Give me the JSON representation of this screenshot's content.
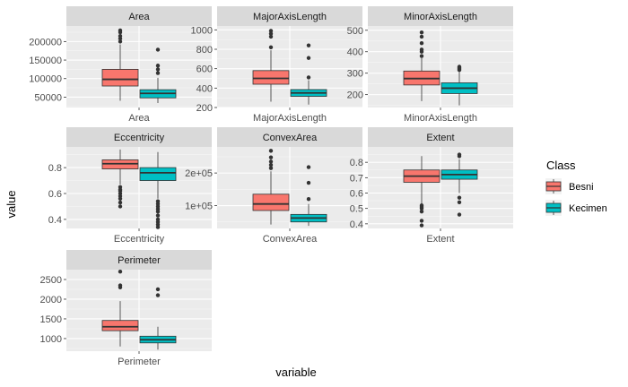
{
  "chart_data": {
    "type": "box",
    "xlabel": "variable",
    "ylabel": "value",
    "legend": {
      "title": "Class",
      "position": "right",
      "entries": [
        {
          "name": "Besni",
          "color": "#F8766D"
        },
        {
          "name": "Kecimen",
          "color": "#00BFC4"
        }
      ]
    },
    "panels": [
      {
        "name": "Area",
        "x_tick": "Area",
        "ylim": [
          22000,
          242000
        ],
        "yticks": [
          {
            "v": 50000,
            "label": "50000"
          },
          {
            "v": 100000,
            "label": "100000"
          },
          {
            "v": 150000,
            "label": "150000"
          },
          {
            "v": 200000,
            "label": "200000"
          }
        ],
        "boxes": [
          {
            "class": "Besni",
            "min": 40000,
            "q1": 80000,
            "median": 98000,
            "q3": 125000,
            "max": 192000,
            "outliers": [
              200000,
              208000,
              215000,
              225000,
              230000
            ]
          },
          {
            "class": "Kecimen",
            "min": 34000,
            "q1": 48000,
            "median": 60000,
            "q3": 70000,
            "max": 102000,
            "outliers": [
              115000,
              125000,
              135000,
              178000
            ]
          }
        ]
      },
      {
        "name": "MajorAxisLength",
        "x_tick": "MajorAxisLength",
        "ylim": [
          200,
          1040
        ],
        "yticks": [
          {
            "v": 200,
            "label": "200"
          },
          {
            "v": 400,
            "label": "400"
          },
          {
            "v": 600,
            "label": "600"
          },
          {
            "v": 800,
            "label": "800"
          },
          {
            "v": 1000,
            "label": "1000"
          }
        ],
        "boxes": [
          {
            "class": "Besni",
            "min": 260,
            "q1": 440,
            "median": 500,
            "q3": 580,
            "max": 790,
            "outliers": [
              820,
              930,
              960,
              990
            ]
          },
          {
            "class": "Kecimen",
            "min": 230,
            "q1": 315,
            "median": 350,
            "q3": 385,
            "max": 480,
            "outliers": [
              510,
              710,
              840
            ]
          }
        ]
      },
      {
        "name": "MinorAxisLength",
        "x_tick": "MinorAxisLength",
        "ylim": [
          140,
          520
        ],
        "yticks": [
          {
            "v": 200,
            "label": "200"
          },
          {
            "v": 300,
            "label": "300"
          },
          {
            "v": 400,
            "label": "400"
          },
          {
            "v": 500,
            "label": "500"
          }
        ],
        "boxes": [
          {
            "class": "Besni",
            "min": 170,
            "q1": 245,
            "median": 275,
            "q3": 310,
            "max": 370,
            "outliers": [
              380,
              400,
              410,
              440,
              470,
              490
            ]
          },
          {
            "class": "Kecimen",
            "min": 150,
            "q1": 205,
            "median": 230,
            "q3": 255,
            "max": 310,
            "outliers": [
              315,
              320,
              325,
              330
            ]
          }
        ]
      },
      {
        "name": "Eccentricity",
        "x_tick": "Eccentricity",
        "ylim": [
          0.33,
          0.96
        ],
        "yticks": [
          {
            "v": 0.4,
            "label": "0.4"
          },
          {
            "v": 0.6,
            "label": "0.6"
          },
          {
            "v": 0.8,
            "label": "0.8"
          }
        ],
        "boxes": [
          {
            "class": "Besni",
            "min": 0.67,
            "q1": 0.79,
            "median": 0.83,
            "q3": 0.86,
            "max": 0.94,
            "outliers": [
              0.5,
              0.53,
              0.56,
              0.58,
              0.6,
              0.62,
              0.63,
              0.65
            ]
          },
          {
            "class": "Kecimen",
            "min": 0.56,
            "q1": 0.7,
            "median": 0.76,
            "q3": 0.8,
            "max": 0.92,
            "outliers": [
              0.34,
              0.36,
              0.38,
              0.4,
              0.43,
              0.46,
              0.48,
              0.5,
              0.52,
              0.54
            ]
          }
        ]
      },
      {
        "name": "ConvexArea",
        "x_tick": "ConvexArea",
        "ylim": [
          30000,
          280000
        ],
        "yticks": [
          {
            "v": 100000,
            "label": "1e+05"
          },
          {
            "v": 200000,
            "label": "2e+05"
          }
        ],
        "boxes": [
          {
            "class": "Besni",
            "min": 42000,
            "q1": 85000,
            "median": 105000,
            "q3": 135000,
            "max": 205000,
            "outliers": [
              215000,
              225000,
              235000,
              248000,
              268000
            ]
          },
          {
            "class": "Kecimen",
            "min": 38000,
            "q1": 50000,
            "median": 62000,
            "q3": 73000,
            "max": 105000,
            "outliers": [
              120000,
              170000,
              218000
            ]
          }
        ]
      },
      {
        "name": "Extent",
        "x_tick": "Extent",
        "ylim": [
          0.37,
          0.9
        ],
        "yticks": [
          {
            "v": 0.4,
            "label": "0.4"
          },
          {
            "v": 0.5,
            "label": "0.5"
          },
          {
            "v": 0.6,
            "label": "0.6"
          },
          {
            "v": 0.7,
            "label": "0.7"
          },
          {
            "v": 0.8,
            "label": "0.8"
          }
        ],
        "boxes": [
          {
            "class": "Besni",
            "min": 0.53,
            "q1": 0.67,
            "median": 0.71,
            "q3": 0.75,
            "max": 0.84,
            "outliers": [
              0.39,
              0.42,
              0.48,
              0.5,
              0.51,
              0.52
            ]
          },
          {
            "class": "Kecimen",
            "min": 0.6,
            "q1": 0.69,
            "median": 0.72,
            "q3": 0.75,
            "max": 0.82,
            "outliers": [
              0.46,
              0.54,
              0.57,
              0.84,
              0.85
            ]
          }
        ]
      },
      {
        "name": "Perimeter",
        "x_tick": "Perimeter",
        "ylim": [
          680,
          2750
        ],
        "yticks": [
          {
            "v": 1000,
            "label": "1000"
          },
          {
            "v": 1500,
            "label": "1500"
          },
          {
            "v": 2000,
            "label": "2000"
          },
          {
            "v": 2500,
            "label": "2500"
          }
        ],
        "boxes": [
          {
            "class": "Besni",
            "min": 800,
            "q1": 1200,
            "median": 1300,
            "q3": 1460,
            "max": 1950,
            "outliers": [
              2300,
              2350,
              2700
            ]
          },
          {
            "class": "Kecimen",
            "min": 720,
            "q1": 890,
            "median": 970,
            "q3": 1060,
            "max": 1300,
            "outliers": [
              2100,
              2250
            ]
          }
        ]
      }
    ]
  }
}
